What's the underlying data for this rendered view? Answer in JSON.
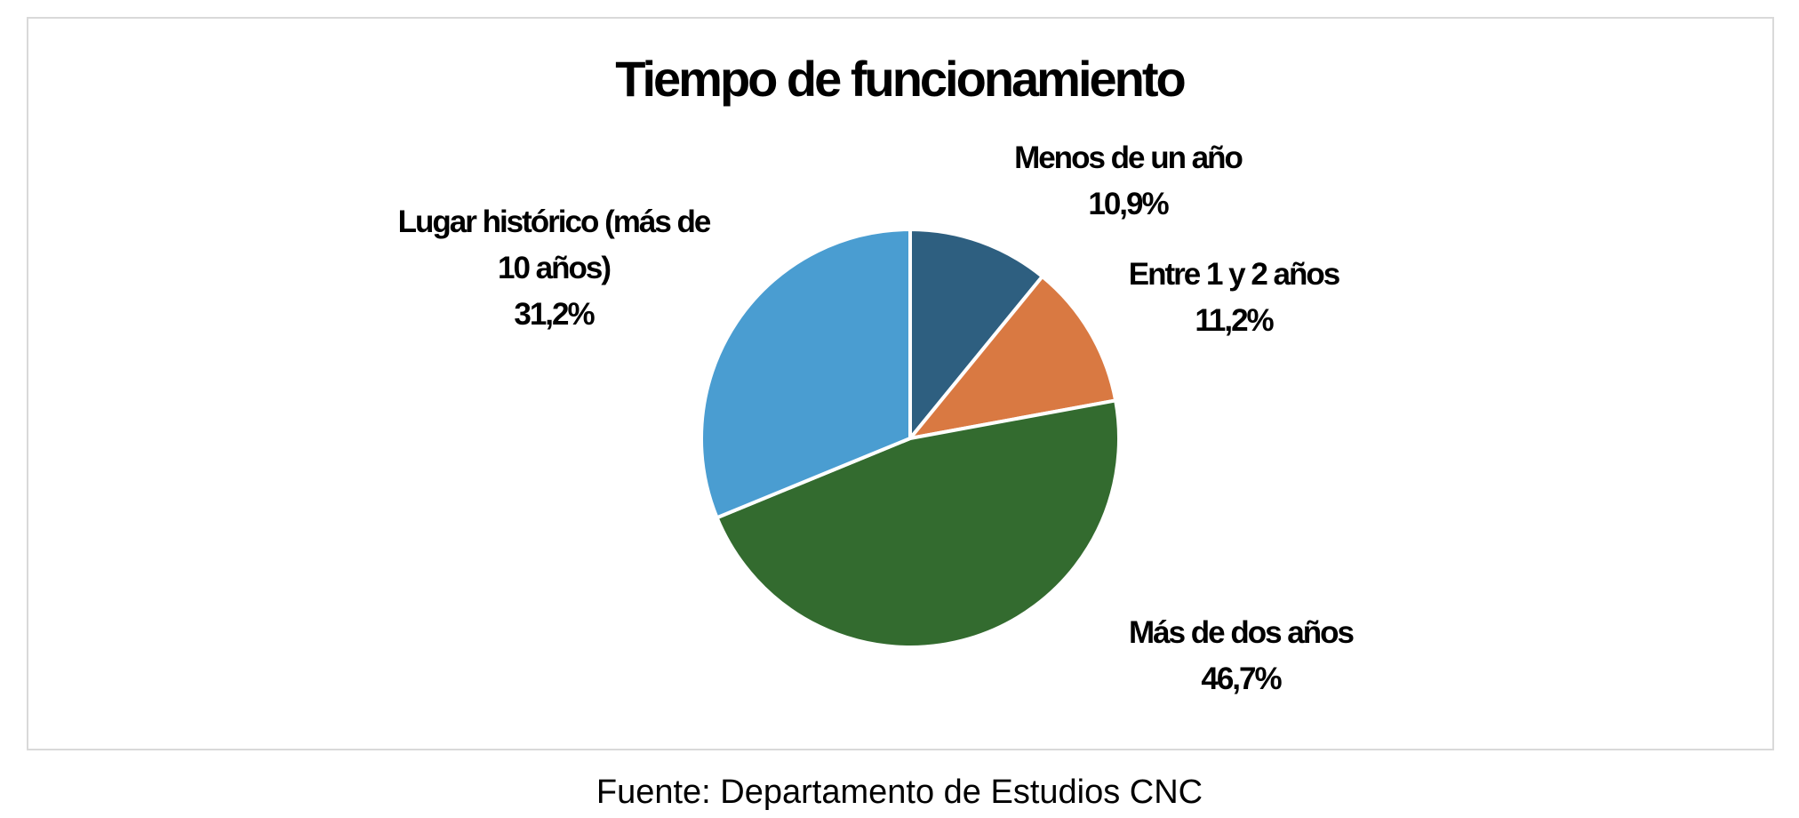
{
  "chart_data": {
    "type": "pie",
    "title": "Tiempo de funcionamiento",
    "categories": [
      "Menos de un año",
      "Entre 1 y 2 años",
      "Más de dos años",
      "Lugar histórico (más de 10 años)"
    ],
    "values": [
      10.9,
      11.2,
      46.7,
      31.2
    ],
    "value_labels": [
      "10,9%",
      "11,2%",
      "46,7%",
      "31,2%"
    ],
    "colors": [
      "#2e5f80",
      "#d97942",
      "#336b2f",
      "#4a9dd1"
    ],
    "caption": "Fuente: Departamento de Estudios CNC"
  }
}
